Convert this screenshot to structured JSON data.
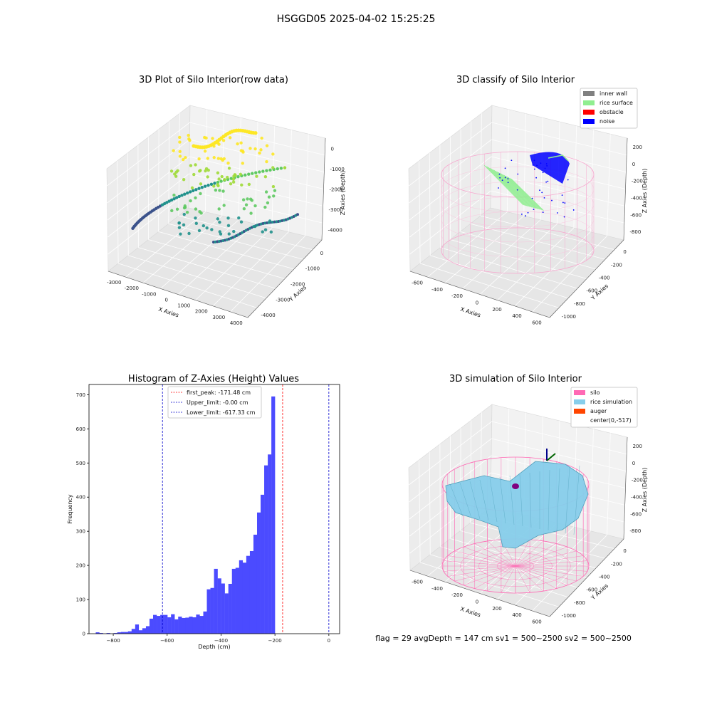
{
  "figure_title": "HSGGD05 2025-04-02 15:25:25",
  "footer_text": "flag = 29  avgDepth = 147 cm  sv1 = 500~2500  sv2 = 500~2500",
  "colors": {
    "inner_wall": "#808080",
    "rice_surface": "#90ee90",
    "obstacle": "#ff0000",
    "noise": "#0000ff",
    "silo": "#ff69b4",
    "rice_simulation": "#87ceeb",
    "auger": "#ff4500",
    "hist_bar": "#4b4bff",
    "peak_line": "#ff0000",
    "limit_line": "#0000cc"
  },
  "chart_data": [
    {
      "type": "scatter",
      "panel": "top-left",
      "title": "3D Plot of Silo Interior(row data)",
      "xlabel": "X Axies",
      "ylabel": "Y Axies",
      "zlabel": "Z Axies (Depth)",
      "x_ticks": [
        "-3000",
        "-2000",
        "-1000",
        "0",
        "1000",
        "2000",
        "3000",
        "4000"
      ],
      "y_ticks": [
        "0",
        "-1000",
        "-2000",
        "-3000",
        "-4000"
      ],
      "z_ticks": [
        "0",
        "-1000",
        "-2000",
        "-3000",
        "-4000"
      ],
      "colormap": "viridis",
      "grid": true
    },
    {
      "type": "scatter",
      "panel": "top-right",
      "title": "3D classify of Silo Interior",
      "xlabel": "X Axies",
      "ylabel": "Y Axies",
      "zlabel": "Z Axies (Depth)",
      "x_ticks": [
        "-600",
        "-400",
        "-200",
        "0",
        "200",
        "400",
        "600"
      ],
      "y_ticks": [
        "0",
        "-200",
        "-400",
        "-600",
        "-800",
        "-1000"
      ],
      "z_ticks": [
        "200",
        "0",
        "-200",
        "-400",
        "-600",
        "-800"
      ],
      "legend": [
        "inner wall",
        "rice surface",
        "obstacle",
        "noise"
      ],
      "legend_position": "top-right",
      "grid": true
    },
    {
      "type": "bar",
      "panel": "bottom-left",
      "title": "Histogram of Z-Axies (Height) Values",
      "xlabel": "Depth (cm)",
      "ylabel": "Frequency",
      "xlim": [
        -890,
        40
      ],
      "ylim": [
        0,
        730
      ],
      "x_ticks": [
        -800,
        -600,
        -400,
        -200,
        0
      ],
      "y_ticks": [
        0,
        100,
        200,
        300,
        400,
        500,
        600,
        700
      ],
      "bin_start": -865,
      "bin_width": 13.3,
      "values": [
        4,
        2,
        0,
        2,
        0,
        2,
        4,
        5,
        5,
        7,
        14,
        27,
        10,
        16,
        22,
        44,
        55,
        52,
        55,
        55,
        48,
        57,
        42,
        50,
        46,
        47,
        50,
        48,
        56,
        52,
        65,
        130,
        134,
        190,
        162,
        147,
        118,
        146,
        190,
        193,
        215,
        208,
        228,
        242,
        290,
        355,
        407,
        493,
        525,
        695
      ],
      "vlines": [
        {
          "label": "first_peak: -171.48 cm",
          "x": -171.48,
          "color": "red"
        },
        {
          "label": "Upper_limit: -0.00 cm",
          "x": -0.0,
          "color": "blue"
        },
        {
          "label": "Lower_limit: -617.33 cm",
          "x": -617.33,
          "color": "blue"
        }
      ],
      "legend_position": "top-center",
      "grid": false
    },
    {
      "type": "surface",
      "panel": "bottom-right",
      "title": "3D simulation of Silo Interior",
      "xlabel": "X Axies",
      "ylabel": "Y Axies",
      "zlabel": "Z Axies (Depth)",
      "x_ticks": [
        "-600",
        "-400",
        "-200",
        "0",
        "200",
        "400",
        "600"
      ],
      "y_ticks": [
        "0",
        "-200",
        "-400",
        "-600",
        "-800",
        "-1000"
      ],
      "z_ticks": [
        "200",
        "0",
        "-200",
        "-400",
        "-600",
        "-800"
      ],
      "legend": [
        "silo",
        "rice simulation",
        "auger",
        "center(0,-517)"
      ],
      "legend_position": "top-right",
      "grid": true
    }
  ]
}
